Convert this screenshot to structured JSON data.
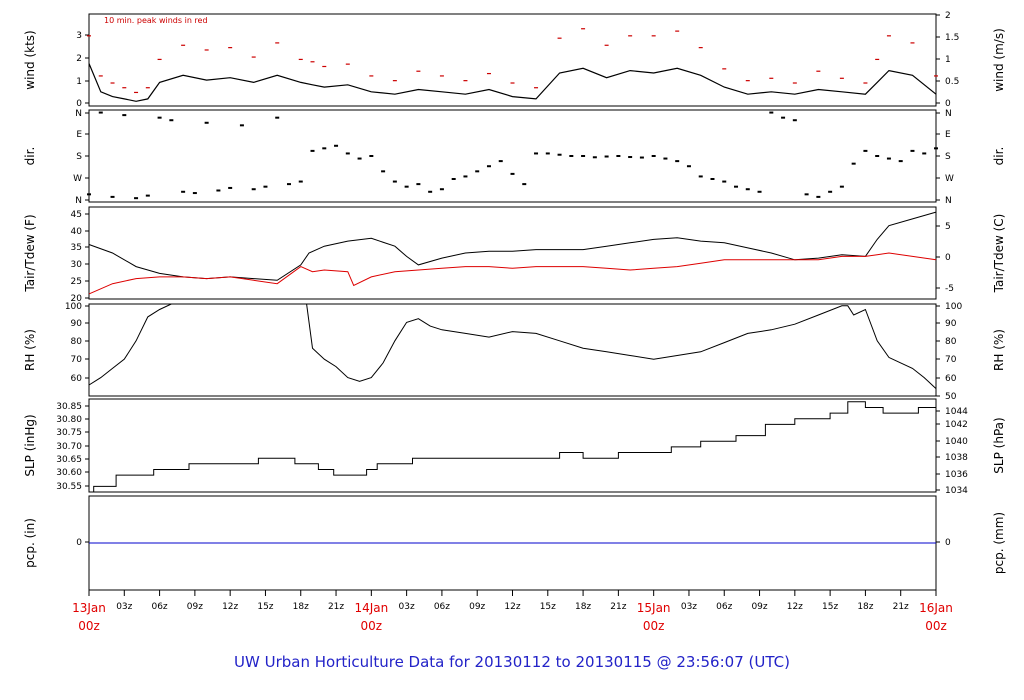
{
  "chart_data": {
    "title": "UW Urban Horticulture Data for 20130112  to  20130115 @ 23:56:07  (UTC)",
    "x_axis": {
      "day_labels": [
        {
          "day": "13Jan",
          "hour": "00z"
        },
        {
          "day": "14Jan",
          "hour": "00z"
        },
        {
          "day": "15Jan",
          "hour": "00z"
        },
        {
          "day": "16Jan",
          "hour": "00z"
        }
      ],
      "hour_ticks": [
        "03z",
        "06z",
        "09z",
        "12z",
        "15z",
        "18z",
        "21z"
      ],
      "range_hours": [
        0,
        72
      ]
    },
    "panels": [
      {
        "id": "wind",
        "type": "line",
        "ylabel_left": "wind (kts)",
        "ylabel_right": "wind (m/s)",
        "ylim": [
          0,
          3.9
        ],
        "left_ticks": [
          "0",
          "1",
          "2",
          "3"
        ],
        "right_ticks": [
          "0",
          "0.5",
          "1",
          "1.5",
          "2"
        ],
        "annotation": "10 min. peak winds in red",
        "series": [
          {
            "color": "#000000",
            "x": [
              0,
              1,
              2,
              3,
              4,
              5,
              6,
              8,
              10,
              12,
              14,
              16,
              18,
              19,
              20,
              22,
              24,
              26,
              28,
              30,
              32,
              34,
              36,
              38,
              40,
              42,
              44,
              46,
              48,
              50,
              52,
              54,
              56,
              58,
              60,
              62,
              64,
              66,
              67,
              68,
              70,
              72
            ],
            "values": [
              1.8,
              0.6,
              0.4,
              0.3,
              0.2,
              0.3,
              1.0,
              1.3,
              1.1,
              1.2,
              1.0,
              1.3,
              1.0,
              0.9,
              0.8,
              0.9,
              0.6,
              0.5,
              0.7,
              0.6,
              0.5,
              0.7,
              0.4,
              0.3,
              1.4,
              1.6,
              1.2,
              1.5,
              1.4,
              1.6,
              1.3,
              0.8,
              0.5,
              0.6,
              0.5,
              0.7,
              0.6,
              0.5,
              1.0,
              1.5,
              1.3,
              0.5
            ]
          },
          {
            "color": "#cc0000",
            "x": [
              0,
              1,
              2,
              3,
              4,
              5,
              6,
              8,
              10,
              12,
              14,
              16,
              18,
              19,
              20,
              22,
              24,
              26,
              28,
              30,
              32,
              34,
              36,
              38,
              40,
              42,
              44,
              46,
              48,
              50,
              52,
              54,
              56,
              58,
              60,
              62,
              64,
              66,
              67,
              68,
              70,
              72
            ],
            "values": [
              3.0,
              1.3,
              1.0,
              0.8,
              0.6,
              0.8,
              2.0,
              2.6,
              2.4,
              2.5,
              2.1,
              2.7,
              2.0,
              1.9,
              1.7,
              1.8,
              1.3,
              1.1,
              1.5,
              1.3,
              1.1,
              1.4,
              1.0,
              0.8,
              2.9,
              3.3,
              2.6,
              3.0,
              3.0,
              3.2,
              2.5,
              1.6,
              1.1,
              1.2,
              1.0,
              1.5,
              1.2,
              1.0,
              2.0,
              3.0,
              2.7,
              1.3
            ]
          }
        ]
      },
      {
        "id": "dir",
        "type": "scatter",
        "ylabel_left": "dir.",
        "ylabel_right": "dir.",
        "left_ticks": [
          "N",
          "W",
          "S",
          "E",
          "N"
        ],
        "right_ticks": [
          "N",
          "W",
          "S",
          "E",
          "N"
        ],
        "ylim": [
          0,
          360
        ],
        "x": [
          0,
          1,
          2,
          3,
          4,
          5,
          6,
          7,
          8,
          9,
          10,
          11,
          12,
          13,
          14,
          15,
          16,
          17,
          18,
          19,
          20,
          21,
          22,
          23,
          24,
          25,
          26,
          27,
          28,
          29,
          30,
          31,
          32,
          33,
          34,
          35,
          36,
          37,
          38,
          39,
          40,
          41,
          42,
          43,
          44,
          45,
          46,
          47,
          48,
          49,
          50,
          51,
          52,
          53,
          54,
          55,
          56,
          57,
          58,
          59,
          60,
          61,
          62,
          63,
          64,
          65,
          66,
          67,
          68,
          69,
          70,
          71,
          72
        ],
        "values": [
          30,
          350,
          20,
          340,
          15,
          25,
          330,
          320,
          40,
          35,
          310,
          45,
          55,
          300,
          50,
          60,
          330,
          70,
          80,
          200,
          210,
          220,
          190,
          170,
          180,
          120,
          80,
          60,
          70,
          40,
          50,
          90,
          100,
          120,
          140,
          160,
          110,
          70,
          190,
          190,
          185,
          180,
          180,
          175,
          178,
          180,
          176,
          174,
          180,
          170,
          160,
          140,
          100,
          90,
          80,
          60,
          50,
          40,
          350,
          330,
          320,
          30,
          20,
          40,
          60,
          150,
          200,
          180,
          170,
          160,
          200,
          190,
          210
        ]
      },
      {
        "id": "temp",
        "type": "line",
        "ylabel_left": "Tair/Tdew (F)",
        "ylabel_right": "Tair/Tdew (C)",
        "ylim": [
          19.5,
          46.5
        ],
        "left_ticks": [
          "20",
          "25",
          "30",
          "35",
          "40",
          "45"
        ],
        "right_ticks": [
          "-5",
          "0",
          "5"
        ],
        "series": [
          {
            "color": "#000000",
            "x": [
              0,
              2,
              4,
              6,
              8,
              10,
              12,
              14,
              16,
              18,
              18.7,
              20,
              22,
              24,
              26,
              27,
              28,
              30,
              32,
              34,
              36,
              38,
              40,
              42,
              44,
              46,
              48,
              50,
              52,
              54,
              56,
              58,
              60,
              62,
              64,
              66,
              67,
              68,
              70,
              72
            ],
            "values": [
              35.5,
              33,
              29,
              27,
              26,
              25.5,
              26,
              25.5,
              25,
              29.5,
              33,
              35,
              36.5,
              37.3,
              35,
              32,
              29.5,
              31.5,
              33,
              33.5,
              33.5,
              34,
              34,
              34,
              35,
              36,
              37,
              37.5,
              36.5,
              36,
              34.5,
              33,
              31,
              31.5,
              32.5,
              32,
              37,
              41,
              43,
              45
            ]
          },
          {
            "color": "#dd0000",
            "x": [
              0,
              2,
              4,
              6,
              8,
              10,
              12,
              14,
              16,
              18,
              19,
              20,
              22,
              22.5,
              24,
              26,
              28,
              30,
              32,
              34,
              36,
              38,
              40,
              42,
              44,
              46,
              48,
              50,
              52,
              54,
              56,
              58,
              60,
              62,
              64,
              66,
              67,
              68,
              70,
              72
            ],
            "values": [
              21,
              24,
              25.5,
              26,
              26,
              25.5,
              26,
              25,
              24,
              29,
              27.5,
              28,
              27.5,
              23.5,
              26,
              27.5,
              28,
              28.5,
              29,
              29,
              28.5,
              29,
              29,
              29,
              28.5,
              28,
              28.5,
              29,
              30,
              31,
              31,
              31,
              31,
              31,
              32,
              32,
              32.5,
              33,
              32,
              31
            ]
          }
        ]
      },
      {
        "id": "rh",
        "type": "line",
        "ylabel_left": "RH (%)",
        "ylabel_right": "RH (%)",
        "ylim": [
          50,
          100
        ],
        "left_ticks": [
          "60",
          "70",
          "80",
          "90",
          "100"
        ],
        "right_ticks": [
          "50",
          "60",
          "70",
          "80",
          "90",
          "100"
        ],
        "series": [
          {
            "color": "#000000",
            "x": [
              0,
              1,
              2,
              3,
              4,
              5,
              6,
              7,
              8,
              9,
              10,
              11,
              12,
              13,
              14,
              15,
              16,
              17,
              18,
              18.5,
              19,
              20,
              21,
              22,
              23,
              24,
              25,
              26,
              27,
              28,
              29,
              30,
              32,
              34,
              36,
              38,
              40,
              42,
              44,
              46,
              48,
              50,
              52,
              54,
              56,
              58,
              60,
              62,
              64,
              64.5,
              65,
              66,
              67,
              68,
              69,
              70,
              71,
              72
            ],
            "values": [
              56,
              60,
              65,
              70,
              80,
              93,
              97,
              100,
              100,
              100,
              100,
              100,
              100,
              100,
              100,
              100,
              100,
              100,
              100,
              100,
              76,
              70,
              66,
              60,
              58,
              60,
              68,
              80,
              90,
              92,
              88,
              86,
              84,
              82,
              85,
              84,
              80,
              76,
              74,
              72,
              70,
              72,
              74,
              79,
              84,
              86,
              89,
              94,
              99,
              99,
              94,
              97,
              80,
              71,
              68,
              65,
              60,
              54
            ]
          }
        ]
      },
      {
        "id": "slp",
        "type": "line",
        "ylabel_left": "SLP (inHg)",
        "ylabel_right": "SLP (hPa)",
        "ylim": [
          30.54,
          30.87
        ],
        "left_ticks": [
          "30.55",
          "30.60",
          "30.65",
          "30.70",
          "30.75",
          "30.80",
          "30.85"
        ],
        "right_ticks": [
          "1034",
          "1036",
          "1038",
          "1040",
          "1042",
          "1044"
        ],
        "series": [
          {
            "color": "#000000",
            "x": [
              0,
              0.4,
              0.4,
              2.3,
              2.3,
              5.5,
              5.5,
              8.5,
              8.5,
              14.4,
              14.4,
              17.5,
              17.5,
              19.5,
              19.5,
              20.8,
              20.8,
              23.6,
              23.6,
              24.5,
              24.5,
              27.5,
              27.5,
              30,
              30,
              40,
              40,
              42,
              42,
              45,
              45,
              49.5,
              49.5,
              52,
              52,
              55,
              55,
              57.5,
              57.5,
              60,
              60,
              63,
              63,
              64.5,
              64.5,
              66,
              66,
              67.5,
              67.5,
              70.5,
              70.5,
              72
            ],
            "values": [
              30.54,
              30.54,
              30.56,
              30.56,
              30.6,
              30.6,
              30.62,
              30.62,
              30.64,
              30.64,
              30.66,
              30.66,
              30.64,
              30.64,
              30.62,
              30.62,
              30.6,
              30.6,
              30.62,
              30.62,
              30.64,
              30.64,
              30.66,
              30.66,
              30.66,
              30.66,
              30.68,
              30.68,
              30.66,
              30.66,
              30.68,
              30.68,
              30.7,
              30.7,
              30.72,
              30.72,
              30.74,
              30.74,
              30.78,
              30.78,
              30.8,
              30.8,
              30.82,
              30.82,
              30.86,
              30.86,
              30.84,
              30.84,
              30.82,
              30.82,
              30.84,
              30.84
            ]
          }
        ]
      },
      {
        "id": "pcp",
        "type": "line",
        "ylabel_left": "pcp. (in)",
        "ylabel_right": "pcp. (mm)",
        "ylim": [
          -1,
          1
        ],
        "left_ticks": [
          "0"
        ],
        "right_ticks": [
          "0"
        ],
        "series": [
          {
            "color": "#0000cc",
            "x": [
              0,
              72
            ],
            "values": [
              0,
              0
            ]
          }
        ]
      }
    ]
  }
}
